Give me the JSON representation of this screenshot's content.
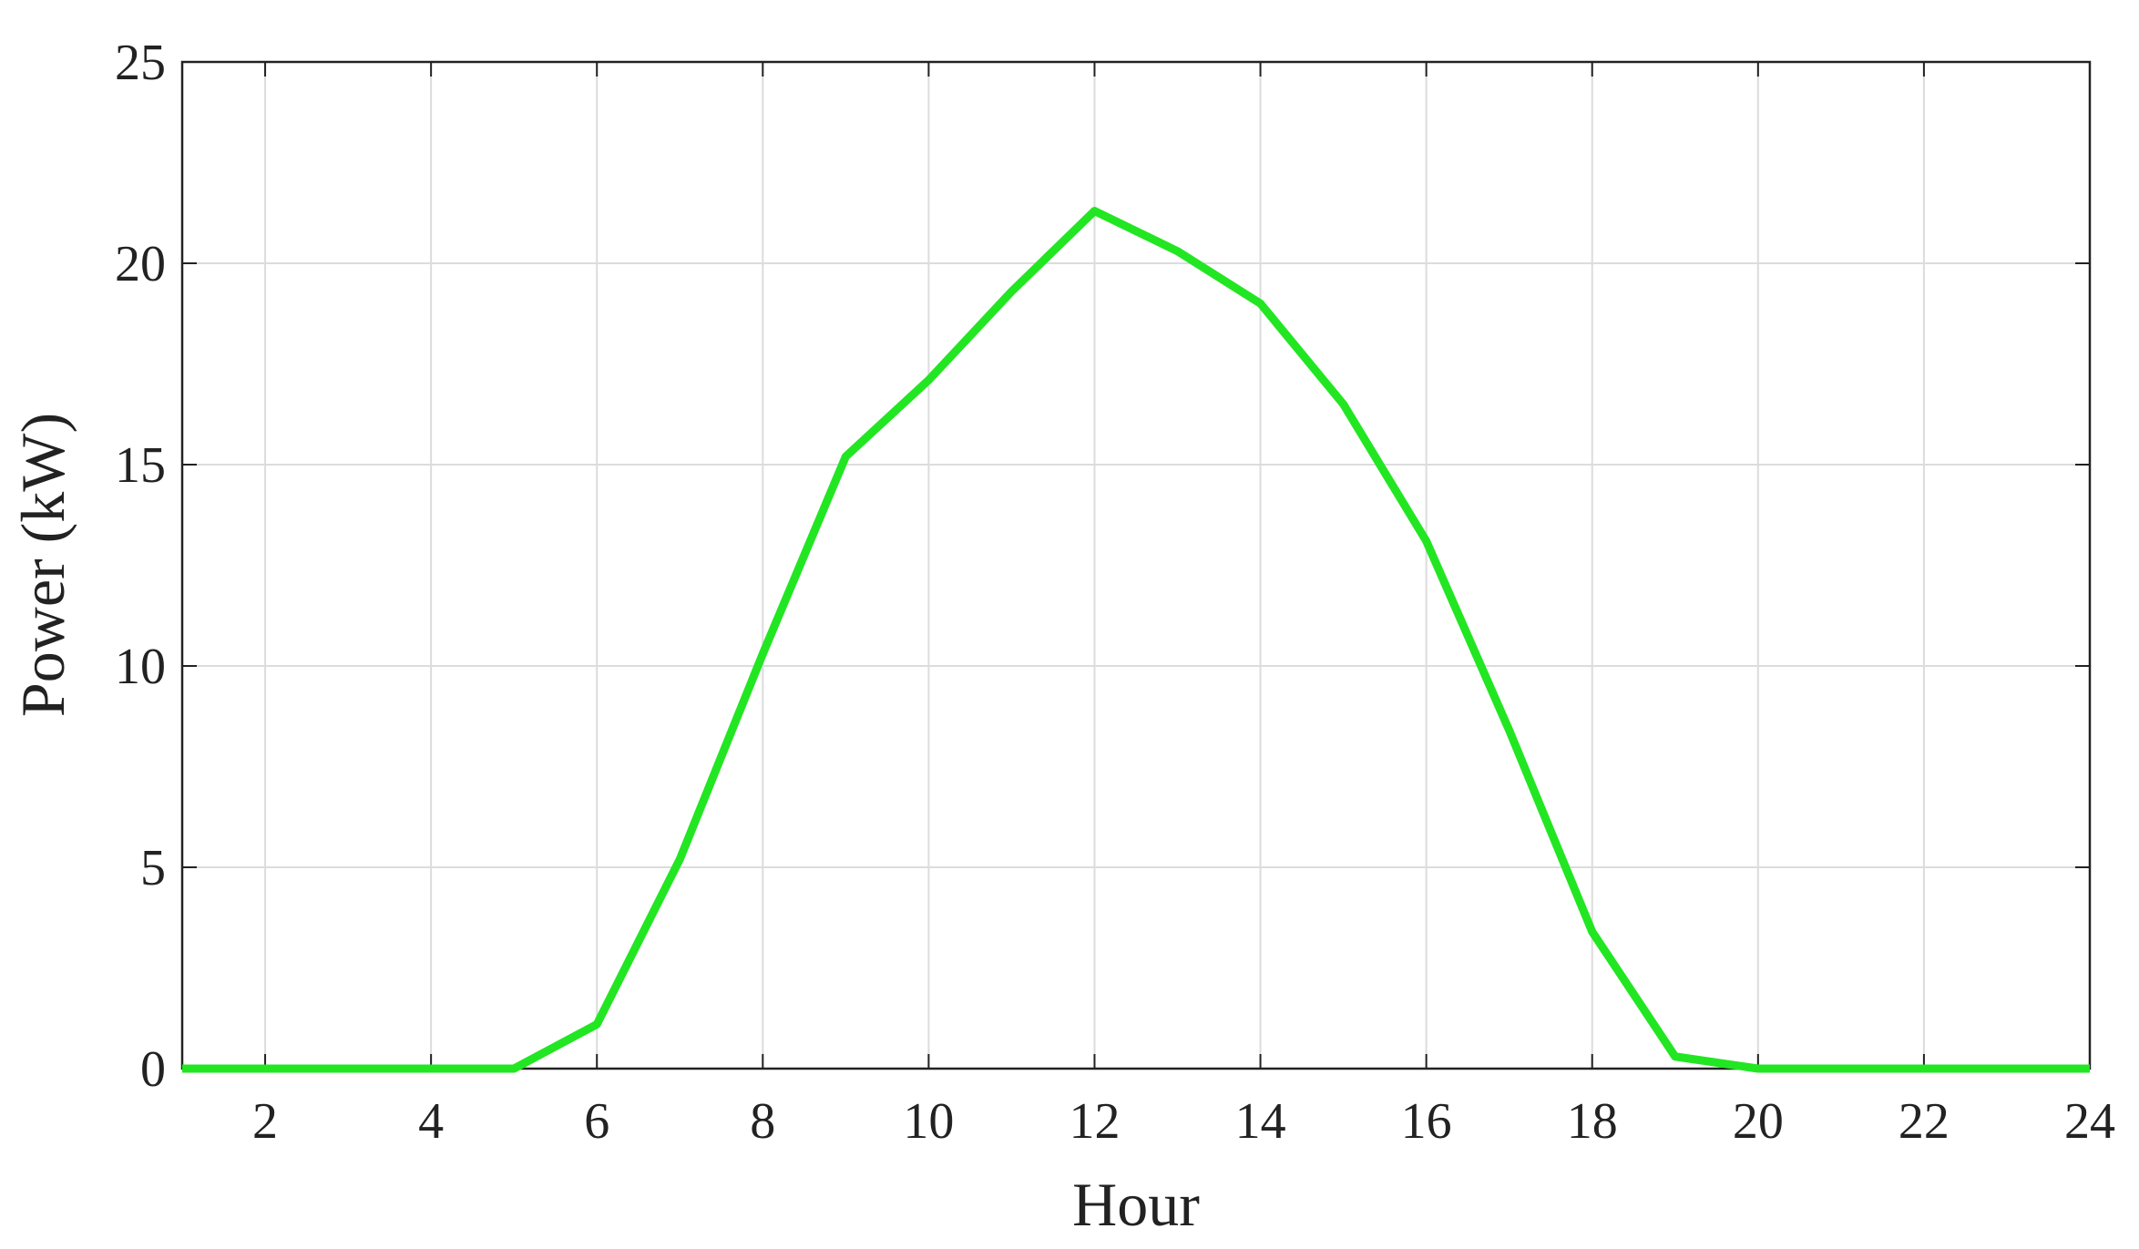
{
  "chart_data": {
    "type": "line",
    "x": [
      1,
      2,
      3,
      4,
      5,
      6,
      7,
      8,
      9,
      10,
      11,
      12,
      13,
      14,
      15,
      16,
      17,
      18,
      19,
      20,
      21,
      22,
      23,
      24
    ],
    "series": [
      {
        "color": "#22e622",
        "values": [
          0,
          0,
          0,
          0,
          0,
          1.1,
          5.2,
          10.3,
          15.2,
          17.1,
          19.3,
          21.3,
          20.3,
          19.0,
          16.5,
          13.1,
          8.4,
          3.4,
          0.3,
          0,
          0,
          0,
          0,
          0
        ]
      }
    ],
    "xlabel": "Hour",
    "ylabel": "Power (kW)",
    "xlim": [
      1,
      24
    ],
    "xticks": [
      2,
      4,
      6,
      8,
      10,
      12,
      14,
      16,
      18,
      20,
      22,
      24
    ],
    "ylim": [
      0,
      25
    ],
    "yticks": [
      0,
      5,
      10,
      15,
      20,
      25
    ],
    "grid": true
  }
}
